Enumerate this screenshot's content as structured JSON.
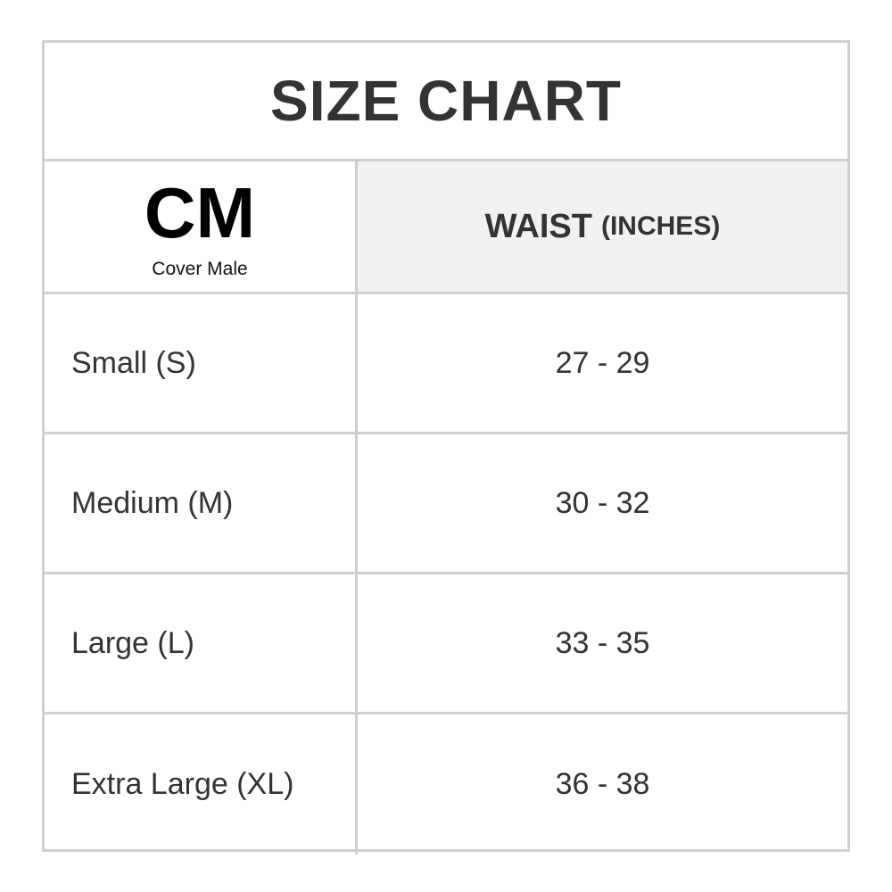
{
  "title": "SIZE CHART",
  "logo": {
    "mark": "CM",
    "name": "Cover Male"
  },
  "header": {
    "column": "WAIST",
    "unit": "(INCHES)"
  },
  "rows": [
    {
      "size": "Small (S)",
      "waist": "27 - 29"
    },
    {
      "size": "Medium (M)",
      "waist": "30 - 32"
    },
    {
      "size": "Large (L)",
      "waist": "33 - 35"
    },
    {
      "size": "Extra Large (XL)",
      "waist": "36 - 38"
    }
  ],
  "colors": {
    "border": "#cfcfcf",
    "header_bg": "#f1f1f1",
    "text": "#333333"
  }
}
